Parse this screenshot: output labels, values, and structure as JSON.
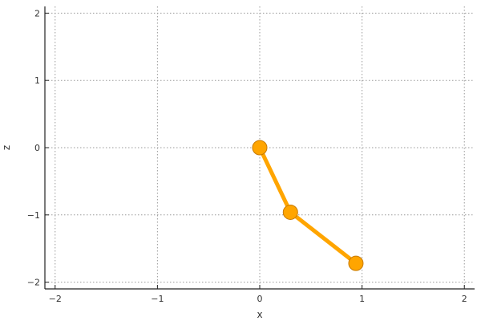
{
  "chart_data": {
    "type": "line",
    "xlabel": "x",
    "ylabel": "z",
    "xlim": [
      -2.1,
      2.1
    ],
    "ylim": [
      -2.1,
      2.1
    ],
    "xticks": [
      -2,
      -1,
      0,
      1,
      2
    ],
    "yticks": [
      -2,
      -1,
      0,
      1,
      2
    ],
    "x_tick_labels": [
      "−2",
      "−1",
      "0",
      "1",
      "2"
    ],
    "y_tick_labels": [
      "−2",
      "−1",
      "0",
      "1",
      "2"
    ],
    "grid": true,
    "series": [
      {
        "x": [
          0.0,
          0.3,
          0.94
        ],
        "y": [
          0.0,
          -0.96,
          -1.72
        ],
        "color": "#FFA500",
        "marker": "circle"
      }
    ]
  },
  "colors": {
    "line": "#FFA500",
    "marker_fill": "#FFA500",
    "marker_stroke": "#C77A00",
    "grid": "#9a9a9a",
    "axis": "#222222"
  }
}
